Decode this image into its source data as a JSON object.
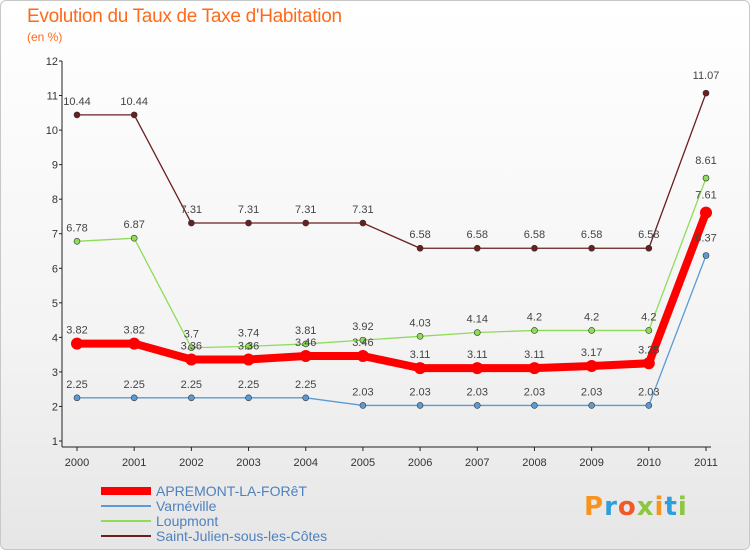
{
  "header": {
    "title": "Evolution du Taux de Taxe d'Habitation",
    "unit": "(en %)"
  },
  "logo": {
    "text": "Proxiti",
    "colors": [
      "#f7941d",
      "#2e9fd9",
      "#f15a24",
      "#8dc63f",
      "#f7941d",
      "#2e9fd9",
      "#8dc63f"
    ]
  },
  "chart_data": {
    "type": "line",
    "title": "Evolution du Taux de Taxe d'Habitation",
    "ylabel": "(en %)",
    "xlabel": "",
    "x": [
      "2000",
      "2001",
      "2002",
      "2003",
      "2004",
      "2005",
      "2006",
      "2007",
      "2008",
      "2009",
      "2010",
      "2011"
    ],
    "ylim": [
      1,
      12
    ],
    "yticks": [
      1,
      2,
      3,
      4,
      5,
      6,
      7,
      8,
      9,
      10,
      11,
      12
    ],
    "grid": false,
    "legend_position": "bottom-left",
    "series": [
      {
        "name": "APREMONT-LA-FORêT",
        "color": "#ff0000",
        "emphasis": true,
        "values": [
          3.82,
          3.82,
          3.36,
          3.36,
          3.46,
          3.46,
          3.11,
          3.11,
          3.11,
          3.17,
          3.25,
          7.61
        ],
        "labels": [
          "3.82",
          "3.82",
          "3.36",
          "3.36",
          "3.46",
          "3.46",
          "3.11",
          "3.11",
          "3.11",
          "3.17",
          "3.25",
          "7.61"
        ]
      },
      {
        "name": "Varnéville",
        "color": "#5b9bd5",
        "emphasis": false,
        "values": [
          2.25,
          2.25,
          2.25,
          2.25,
          2.25,
          2.03,
          2.03,
          2.03,
          2.03,
          2.03,
          2.03,
          6.37
        ],
        "labels": [
          "2.25",
          "2.25",
          "2.25",
          "2.25",
          "2.25",
          "2.03",
          "2.03",
          "2.03",
          "2.03",
          "2.03",
          "2.03",
          "6.37"
        ]
      },
      {
        "name": "Loupmont",
        "color": "#8fdc5a",
        "emphasis": false,
        "values": [
          6.78,
          6.87,
          3.7,
          3.74,
          3.81,
          3.92,
          4.03,
          4.14,
          4.2,
          4.2,
          4.2,
          8.61
        ],
        "labels": [
          "6.78",
          "6.87",
          "3.7",
          "3.74",
          "3.81",
          "3.92",
          "4.03",
          "4.14",
          "4.2",
          "4.2",
          "4.2",
          "8.61"
        ]
      },
      {
        "name": "Saint-Julien-sous-les-Côtes",
        "color": "#6b1f1f",
        "emphasis": false,
        "values": [
          10.44,
          10.44,
          7.31,
          7.31,
          7.31,
          7.31,
          6.58,
          6.58,
          6.58,
          6.58,
          6.58,
          11.07
        ],
        "labels": [
          "10.44",
          "10.44",
          "7.31",
          "7.31",
          "7.31",
          "7.31",
          "6.58",
          "6.58",
          "6.58",
          "6.58",
          "6.58",
          "11.07"
        ]
      }
    ]
  }
}
